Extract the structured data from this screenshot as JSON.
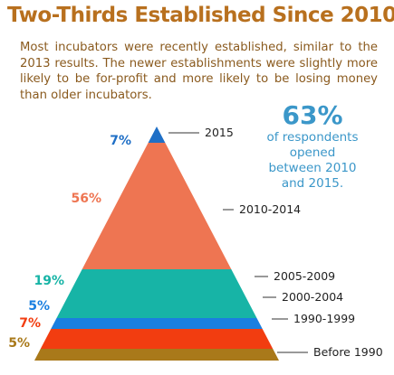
{
  "header": {
    "title": "Two-Thirds Established Since 2010",
    "subtitle": "Most incubators were recently established, similar to the 2013 results. The newer establishments were slightly more likely to be for-profit and more likely to be losing money than older incubators."
  },
  "callout": {
    "percent": "63%",
    "text_lines": [
      "of respondents",
      "opened",
      "between 2010",
      "and 2015."
    ]
  },
  "chart_data": {
    "type": "pyramid",
    "unit": "%",
    "categories": [
      "2015",
      "2010-2014",
      "2005-2009",
      "2000-2004",
      "1990-1999",
      "Before 1990"
    ],
    "values": [
      7,
      56,
      19,
      5,
      7,
      5
    ],
    "value_labels": [
      "7%",
      "56%",
      "19%",
      "5%",
      "7%",
      "5%"
    ],
    "colors": [
      "#1f6fc6",
      "#ee7552",
      "#17b4a6",
      "#1a7fe0",
      "#f23d10",
      "#a9791a"
    ],
    "label_colors": [
      "#1f6fc6",
      "#ee7552",
      "#17b4a6",
      "#1a7fe0",
      "#f23d10",
      "#a9791a"
    ]
  }
}
